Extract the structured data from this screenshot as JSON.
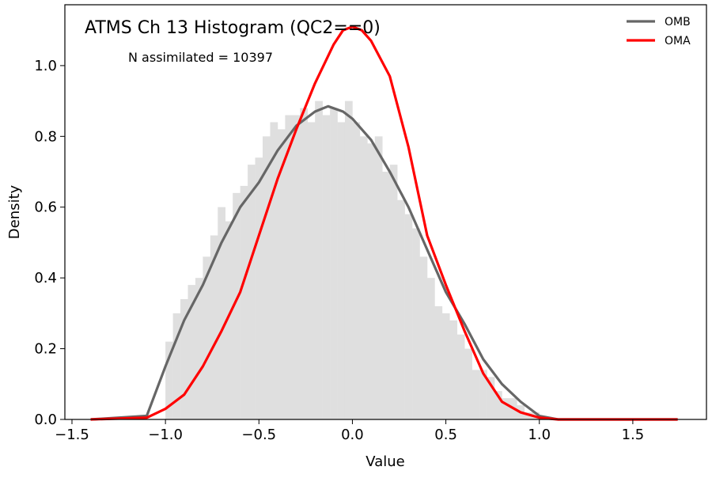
{
  "chart_data": {
    "type": "histogram",
    "title": "ATMS Ch 13 Histogram (QC2==0)",
    "annotation": "N assimilated = 10397",
    "xlabel": "Value",
    "ylabel": "Density",
    "xlim": [
      -1.538,
      1.894
    ],
    "ylim": [
      0,
      1.172
    ],
    "xticks": [
      {
        "value": -1.5,
        "label": "−1.5"
      },
      {
        "value": -1.0,
        "label": "−1.0"
      },
      {
        "value": -0.5,
        "label": "−0.5"
      },
      {
        "value": 0,
        "label": "0.0"
      },
      {
        "value": 0.5,
        "label": "0.5"
      },
      {
        "value": 1.0,
        "label": "1.0"
      },
      {
        "value": 1.5,
        "label": "1.5"
      }
    ],
    "yticks": [
      {
        "value": 0,
        "label": "0.0"
      },
      0.2,
      0.4,
      0.6,
      0.8,
      {
        "value": 1.0,
        "label": "1.0"
      }
    ],
    "hist_color": "#dfdfdf",
    "bins": [
      -1.0,
      -0.96,
      -0.92,
      -0.88,
      -0.84,
      -0.8,
      -0.76,
      -0.72,
      -0.68,
      -0.64,
      -0.6,
      -0.56,
      -0.52,
      -0.48,
      -0.44,
      -0.4,
      -0.36,
      -0.32,
      -0.28,
      -0.24,
      -0.2,
      -0.16,
      -0.12,
      -0.08,
      -0.04,
      0,
      0.04,
      0.08,
      0.12,
      0.16,
      0.2,
      0.24,
      0.28,
      0.32,
      0.36,
      0.4,
      0.44,
      0.48,
      0.52,
      0.56,
      0.6,
      0.64,
      0.68,
      0.72,
      0.76,
      0.8,
      0.84,
      0.88,
      0.92,
      0.96,
      1.0
    ],
    "counts": [
      0.22,
      0.3,
      0.34,
      0.38,
      0.4,
      0.46,
      0.52,
      0.6,
      0.56,
      0.64,
      0.66,
      0.72,
      0.74,
      0.8,
      0.84,
      0.82,
      0.86,
      0.86,
      0.88,
      0.84,
      0.9,
      0.86,
      0.88,
      0.84,
      0.9,
      0.84,
      0.8,
      0.78,
      0.8,
      0.7,
      0.72,
      0.62,
      0.58,
      0.54,
      0.46,
      0.4,
      0.32,
      0.3,
      0.28,
      0.24,
      0.2,
      0.14,
      0.14,
      0.12,
      0.08,
      0.06,
      0.06,
      0.04,
      0.02,
      0.02
    ],
    "series": [
      {
        "name": "OMB",
        "color": "#666666",
        "x": [
          -1.4,
          -1.1,
          -1.0,
          -0.9,
          -0.8,
          -0.7,
          -0.6,
          -0.5,
          -0.4,
          -0.3,
          -0.2,
          -0.13,
          -0.05,
          0,
          0.1,
          0.2,
          0.3,
          0.4,
          0.5,
          0.6,
          0.7,
          0.8,
          0.9,
          1.0,
          1.1,
          1.74
        ],
        "values": [
          0,
          0.01,
          0.15,
          0.28,
          0.38,
          0.5,
          0.6,
          0.67,
          0.76,
          0.83,
          0.87,
          0.885,
          0.87,
          0.85,
          0.79,
          0.7,
          0.6,
          0.48,
          0.36,
          0.27,
          0.17,
          0.1,
          0.05,
          0.01,
          0,
          0
        ]
      },
      {
        "name": "OMA",
        "color": "#ff0000",
        "x": [
          -1.4,
          -1.1,
          -1.0,
          -0.9,
          -0.8,
          -0.7,
          -0.6,
          -0.5,
          -0.4,
          -0.3,
          -0.2,
          -0.1,
          -0.05,
          0,
          0.05,
          0.1,
          0.2,
          0.3,
          0.4,
          0.5,
          0.6,
          0.7,
          0.8,
          0.9,
          1.0,
          1.1,
          1.74
        ],
        "values": [
          0,
          0.005,
          0.03,
          0.07,
          0.15,
          0.25,
          0.36,
          0.52,
          0.68,
          0.82,
          0.95,
          1.06,
          1.1,
          1.11,
          1.1,
          1.07,
          0.97,
          0.77,
          0.52,
          0.38,
          0.25,
          0.13,
          0.05,
          0.02,
          0.005,
          0,
          0
        ]
      }
    ],
    "legend": "upper right"
  }
}
